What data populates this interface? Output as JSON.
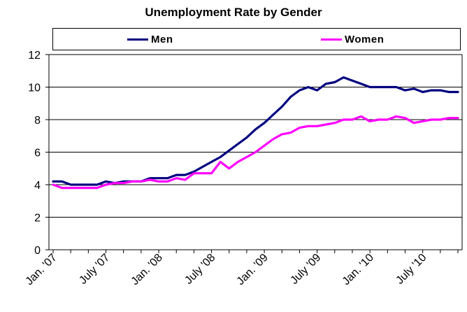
{
  "chart_data": {
    "type": "line",
    "title": "Unemployment Rate by Gender",
    "xlabel": "",
    "ylabel": "",
    "ylim": [
      0,
      12
    ],
    "y_ticks": [
      0,
      2,
      4,
      6,
      8,
      10,
      12
    ],
    "x_tick_labels": [
      "Jan. '07",
      "July '07",
      "Jan. '08",
      "July '08",
      "Jan. '09",
      "July '09",
      "Jan. '10",
      "July '10"
    ],
    "x_tick_positions": [
      0,
      6,
      12,
      18,
      24,
      30,
      36,
      42
    ],
    "grid": "horizontal",
    "legend_position": "top",
    "x": [
      "Jan 2007",
      "Feb 2007",
      "Mar 2007",
      "Apr 2007",
      "May 2007",
      "Jun 2007",
      "Jul 2007",
      "Aug 2007",
      "Sep 2007",
      "Oct 2007",
      "Nov 2007",
      "Dec 2007",
      "Jan 2008",
      "Feb 2008",
      "Mar 2008",
      "Apr 2008",
      "May 2008",
      "Jun 2008",
      "Jul 2008",
      "Aug 2008",
      "Sep 2008",
      "Oct 2008",
      "Nov 2008",
      "Dec 2008",
      "Jan 2009",
      "Feb 2009",
      "Mar 2009",
      "Apr 2009",
      "May 2009",
      "Jun 2009",
      "Jul 2009",
      "Aug 2009",
      "Sep 2009",
      "Oct 2009",
      "Nov 2009",
      "Dec 2009",
      "Jan 2010",
      "Feb 2010",
      "Mar 2010",
      "Apr 2010",
      "May 2010",
      "Jun 2010",
      "Jul 2010",
      "Aug 2010",
      "Sep 2010",
      "Oct 2010",
      "Nov 2010"
    ],
    "series": [
      {
        "name": "Men",
        "color": "#000080",
        "values": [
          4.2,
          4.2,
          4.0,
          4.0,
          4.0,
          4.0,
          4.2,
          4.1,
          4.2,
          4.2,
          4.2,
          4.4,
          4.4,
          4.4,
          4.6,
          4.6,
          4.8,
          5.1,
          5.4,
          5.7,
          6.1,
          6.5,
          6.9,
          7.4,
          7.8,
          8.3,
          8.8,
          9.4,
          9.8,
          10.0,
          9.8,
          10.2,
          10.3,
          10.6,
          10.4,
          10.2,
          10.0,
          10.0,
          10.0,
          10.0,
          9.8,
          9.9,
          9.7,
          9.8,
          9.8,
          9.7,
          9.7
        ],
        "end_value": 9.7
      },
      {
        "name": "Women",
        "color": "#ff00ff",
        "values": [
          4.0,
          3.8,
          3.8,
          3.8,
          3.8,
          3.8,
          4.0,
          4.1,
          4.1,
          4.2,
          4.2,
          4.3,
          4.2,
          4.2,
          4.4,
          4.3,
          4.7,
          4.7,
          4.7,
          5.4,
          5.0,
          5.4,
          5.7,
          6.0,
          6.4,
          6.8,
          7.1,
          7.2,
          7.5,
          7.6,
          7.6,
          7.7,
          7.8,
          8.0,
          8.0,
          8.2,
          7.9,
          8.0,
          8.0,
          8.2,
          8.1,
          7.8,
          7.9,
          8.0,
          8.0,
          8.1,
          8.1
        ],
        "end_value": 8.1
      }
    ]
  }
}
